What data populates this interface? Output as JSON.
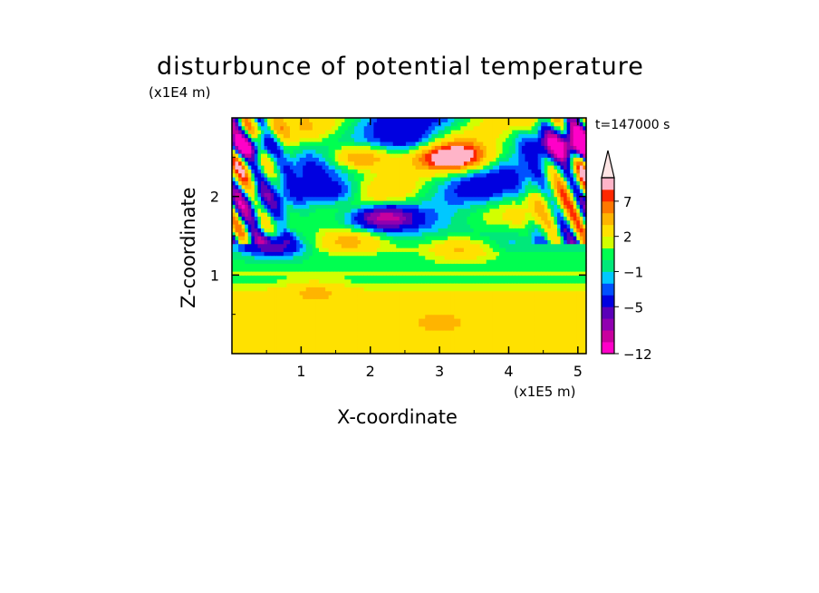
{
  "title": "disturbunce of potential temperature",
  "time_label": "t=147000 s",
  "chart_data": {
    "type": "heatmap",
    "title": "disturbunce of potential temperature",
    "xlabel": "X-coordinate",
    "ylabel": "Z-coordinate",
    "x_unit": "(x1E5 m)",
    "y_unit": "(x1E4 m)",
    "xlim": [
      0,
      5.12
    ],
    "ylim": [
      0,
      3.0
    ],
    "x_ticks": [
      "1",
      "2",
      "3",
      "4",
      "5"
    ],
    "x_tick_values": [
      1,
      2,
      3,
      4,
      5
    ],
    "y_ticks": [
      "1",
      "2"
    ],
    "y_tick_values": [
      1,
      2
    ],
    "colorbar": {
      "levels": [
        -12,
        -10,
        -8,
        -6.5,
        -5,
        -3,
        -2,
        -1,
        0,
        1,
        2,
        4,
        5.5,
        7,
        8.5,
        10
      ],
      "tick_labels": [
        "-12",
        "-5",
        "-1",
        "2",
        "7"
      ],
      "tick_values": [
        -12,
        -5,
        -1,
        2,
        7
      ],
      "colors": [
        "#ff00c8",
        "#c8009e",
        "#9000b0",
        "#5a00b8",
        "#0000e0",
        "#0050ff",
        "#00c8ff",
        "#00e87a",
        "#00ff50",
        "#d2ff00",
        "#ffe100",
        "#ffb400",
        "#ff7800",
        "#ff2800",
        "#ffb4c8"
      ],
      "extend_arrow_color": "#ffe6e6"
    },
    "field_features": [
      {
        "x": 1.8,
        "z": 2.5,
        "value": 9
      },
      {
        "x": 3.2,
        "z": 2.5,
        "value": 9
      },
      {
        "x": 2.6,
        "z": 2.7,
        "value": -4
      },
      {
        "x": 2.2,
        "z": 1.75,
        "value": -8
      },
      {
        "x": 1.5,
        "z": 2.05,
        "value": -6
      },
      {
        "x": 3.3,
        "z": 1.35,
        "value": 4
      },
      {
        "x": 1.7,
        "z": 1.45,
        "value": 4
      },
      {
        "x": 0.2,
        "z": 2.65,
        "value": -10
      },
      {
        "x": 5.0,
        "z": 2.65,
        "value": -10
      },
      {
        "x": 0.6,
        "z": 1.4,
        "value": -7
      },
      {
        "x": 3.0,
        "z": 0.4,
        "value": 2.5
      },
      {
        "x": 1.2,
        "z": 0.8,
        "value": 2.5
      }
    ],
    "grid": false
  }
}
